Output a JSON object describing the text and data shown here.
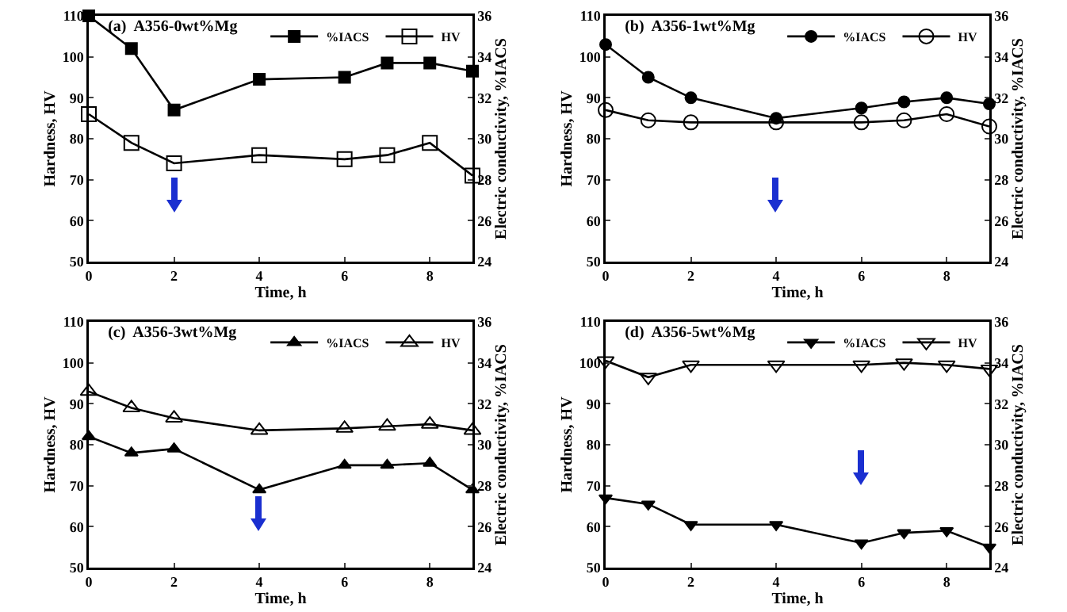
{
  "chart_data": [
    {
      "type": "line",
      "title": "(a)  A356-0wt%Mg",
      "xlabel": "Time, h",
      "ylabel": "Hardness, HV",
      "y2label": "Electric conductivity, %IACS",
      "x": [
        0,
        1,
        2,
        4,
        6,
        7,
        8,
        9
      ],
      "xlim": [
        0,
        9
      ],
      "xticks": [
        0,
        2,
        4,
        6,
        8
      ],
      "ylim": [
        50,
        110
      ],
      "yticks": [
        50,
        60,
        70,
        80,
        90,
        100,
        110
      ],
      "y2lim": [
        24,
        36
      ],
      "y2ticks": [
        24,
        26,
        28,
        30,
        32,
        34,
        36
      ],
      "legend": "top right",
      "grid": false,
      "line_style": "solid",
      "series": [
        {
          "name": "%IACS",
          "color": "#000000",
          "axis": "y2",
          "marker": "square",
          "values": [
            36,
            34.4,
            31.4,
            32.9,
            33,
            33.7,
            33.7,
            33.3
          ]
        },
        {
          "name": "HV",
          "color": "#000000",
          "marker": "square",
          "values": [
            86,
            79,
            74,
            76,
            75,
            76,
            79,
            71
          ]
        }
      ]
    },
    {
      "type": "line",
      "title": "(b)  A356-1wt%Mg",
      "xlabel": "Time, h",
      "ylabel": "Hardness, HV",
      "y2label": "Electric conductivity, %IACS",
      "x": [
        0,
        1,
        2,
        4,
        6,
        7,
        8,
        9
      ],
      "xlim": [
        0,
        9
      ],
      "xticks": [
        0,
        2,
        4,
        6,
        8
      ],
      "ylim": [
        50,
        110
      ],
      "yticks": [
        50,
        60,
        70,
        80,
        90,
        100,
        110
      ],
      "y2lim": [
        24,
        36
      ],
      "y2ticks": [
        24,
        26,
        28,
        30,
        32,
        34,
        36
      ],
      "legend": "top right",
      "grid": false,
      "line_style": "solid",
      "series": [
        {
          "name": "%IACS",
          "color": "#000000",
          "axis": "y2",
          "marker": "circle",
          "values": [
            34.6,
            33,
            32,
            31,
            31.5,
            31.8,
            32,
            31.7
          ]
        },
        {
          "name": "HV",
          "color": "#000000",
          "marker": "circle",
          "values": [
            87,
            84.5,
            84,
            84,
            84,
            84.5,
            86,
            83
          ]
        }
      ]
    },
    {
      "type": "line",
      "title": "(c)  A356-3wt%Mg",
      "xlabel": "Time, h",
      "ylabel": "Hardness, HV",
      "y2label": "Electric conductivity, %IACS",
      "x": [
        0,
        1,
        2,
        4,
        6,
        7,
        8,
        9
      ],
      "xlim": [
        0,
        9
      ],
      "xticks": [
        0,
        2,
        4,
        6,
        8
      ],
      "ylim": [
        50,
        110
      ],
      "yticks": [
        50,
        60,
        70,
        80,
        90,
        100,
        110
      ],
      "y2lim": [
        24,
        36
      ],
      "y2ticks": [
        24,
        26,
        28,
        30,
        32,
        34,
        36
      ],
      "legend": "top right",
      "grid": false,
      "line_style": "solid",
      "series": [
        {
          "name": "%IACS",
          "color": "#000000",
          "axis": "y2",
          "marker": "triangle",
          "values": [
            30.4,
            29.6,
            29.8,
            27.8,
            29,
            29,
            29.1,
            27.8
          ]
        },
        {
          "name": "HV",
          "color": "#000000",
          "marker": "triangle",
          "values": [
            93,
            89,
            86.5,
            83.5,
            84,
            84.5,
            85,
            83.5
          ]
        }
      ]
    },
    {
      "type": "line",
      "title": "(d)  A356-5wt%Mg",
      "xlabel": "Time, h",
      "ylabel": "Hardness, HV",
      "y2label": "Electric conductivity, %IACS",
      "x": [
        0,
        1,
        2,
        4,
        6,
        7,
        8,
        9
      ],
      "xlim": [
        0,
        9
      ],
      "xticks": [
        0,
        2,
        4,
        6,
        8
      ],
      "ylim": [
        50,
        110
      ],
      "yticks": [
        50,
        60,
        70,
        80,
        90,
        100,
        110
      ],
      "y2lim": [
        24,
        36
      ],
      "y2ticks": [
        24,
        26,
        28,
        30,
        32,
        34,
        36
      ],
      "legend": "top right",
      "grid": false,
      "line_style": "solid",
      "series": [
        {
          "name": "%IACS",
          "color": "#000000",
          "axis": "y2",
          "marker": "triangle-down",
          "values": [
            27.4,
            27.1,
            26.1,
            26.1,
            25.2,
            25.7,
            25.8,
            25
          ]
        },
        {
          "name": "HV",
          "color": "#000000",
          "marker": "triangle-down",
          "values": [
            100.5,
            96.5,
            99.5,
            99.5,
            99.5,
            100,
            99.5,
            98.5
          ]
        }
      ]
    }
  ]
}
